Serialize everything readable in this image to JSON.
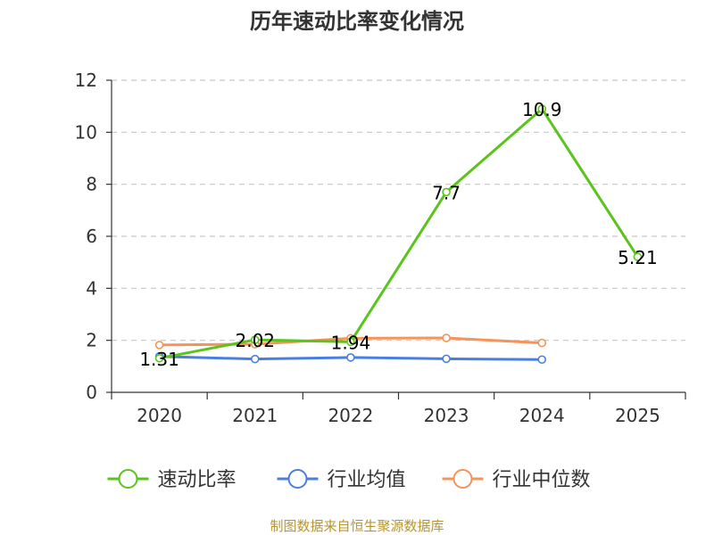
{
  "chart_data": {
    "type": "line",
    "title": "历年速动比率变化情况",
    "xlabel": "",
    "ylabel": "",
    "categories": [
      "2020",
      "2021",
      "2022",
      "2023",
      "2024",
      "2025"
    ],
    "ylim": [
      0,
      12
    ],
    "yticks": [
      0,
      2,
      4,
      6,
      8,
      10,
      12
    ],
    "grid": true,
    "legend_position": "bottom",
    "series": [
      {
        "name": "速动比率",
        "color": "#5bc41c",
        "values": [
          1.31,
          2.02,
          1.94,
          7.7,
          10.9,
          5.21
        ],
        "labels": [
          "1.31",
          "2.02",
          "1.94",
          "7.7",
          "10.9",
          "5.21"
        ]
      },
      {
        "name": "行业均值",
        "color": "#4a7fe0",
        "values": [
          1.38,
          1.28,
          1.34,
          1.29,
          1.26,
          null
        ],
        "labels": []
      },
      {
        "name": "行业中位数",
        "color": "#f5935a",
        "values": [
          1.82,
          1.85,
          2.08,
          2.09,
          1.9,
          null
        ],
        "labels": []
      }
    ]
  },
  "source_text": "制图数据来自恒生聚源数据库"
}
